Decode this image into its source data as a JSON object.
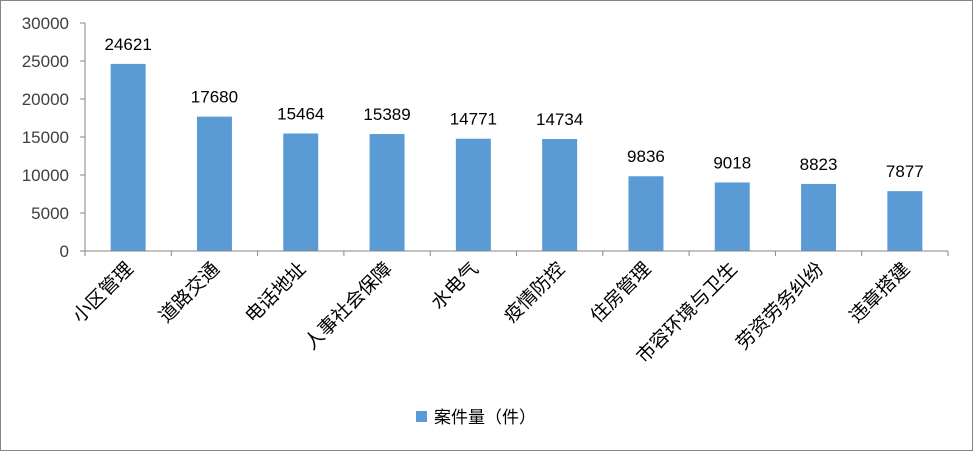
{
  "chart_data": {
    "type": "bar",
    "categories": [
      "小区管理",
      "道路交通",
      "电话地址",
      "人事社会保障",
      "水电气",
      "疫情防控",
      "住房管理",
      "市容环境与卫生",
      "劳资劳务纠纷",
      "违章搭建"
    ],
    "series": [
      {
        "name": "案件量（件）",
        "values": [
          24621,
          17680,
          15464,
          15389,
          14771,
          14734,
          9836,
          9018,
          8823,
          7877
        ],
        "color": "#5B9BD5"
      }
    ],
    "data_labels": [
      "24621",
      "17680",
      "15464",
      "15389",
      "14771",
      "14734",
      "9836",
      "9018",
      "8823",
      "7877"
    ],
    "ylim": [
      0,
      30000
    ],
    "yticks": [
      0,
      5000,
      10000,
      15000,
      20000,
      25000,
      30000
    ],
    "ytick_labels": [
      "0",
      "5000",
      "10000",
      "15000",
      "20000",
      "25000",
      "30000"
    ],
    "grid": false,
    "legend_position": "bottom",
    "title": "",
    "xlabel": "",
    "ylabel": ""
  }
}
